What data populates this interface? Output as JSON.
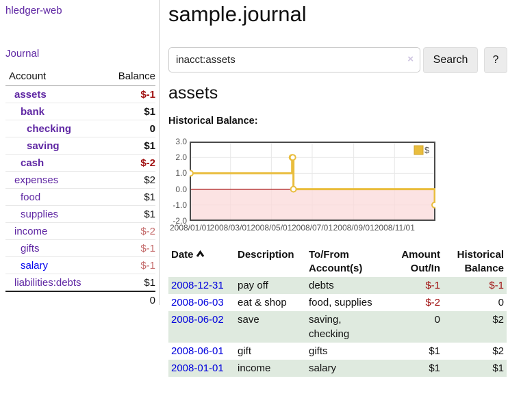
{
  "app": {
    "brand": "hledger-web",
    "nav_journal": "Journal"
  },
  "sidebar": {
    "accounts_table": {
      "col_account": "Account",
      "col_balance": "Balance",
      "rows": [
        {
          "name": "assets",
          "balance": "$-1",
          "depth": 1,
          "bold": true,
          "balance_color": "neg-strong"
        },
        {
          "name": "bank",
          "balance": "$1",
          "depth": 2,
          "bold": true,
          "balance_color": "normal"
        },
        {
          "name": "checking",
          "balance": "0",
          "depth": 3,
          "bold": true,
          "balance_color": "normal"
        },
        {
          "name": "saving",
          "balance": "$1",
          "depth": 3,
          "bold": true,
          "balance_color": "normal"
        },
        {
          "name": "cash",
          "balance": "$-2",
          "depth": 2,
          "bold": true,
          "balance_color": "neg-strong"
        },
        {
          "name": "expenses",
          "balance": "$2",
          "depth": 1,
          "bold": false,
          "balance_color": "normal"
        },
        {
          "name": "food",
          "balance": "$1",
          "depth": 2,
          "bold": false,
          "balance_color": "normal"
        },
        {
          "name": "supplies",
          "balance": "$1",
          "depth": 2,
          "bold": false,
          "balance_color": "normal"
        },
        {
          "name": "income",
          "balance": "$-2",
          "depth": 1,
          "bold": false,
          "balance_color": "neg-soft"
        },
        {
          "name": "gifts",
          "balance": "$-1",
          "depth": 2,
          "bold": false,
          "balance_color": "neg-soft"
        },
        {
          "name": "salary",
          "balance": "$-1",
          "depth": 2,
          "bold": false,
          "balance_color": "neg-soft",
          "link_color": "blue"
        },
        {
          "name": "liabilities:debts",
          "balance": "$1",
          "depth": 1,
          "bold": false,
          "balance_color": "normal"
        }
      ],
      "total": "0"
    }
  },
  "header": {
    "title": "sample.journal"
  },
  "search": {
    "value": "inacct:assets",
    "clear_icon": "×",
    "button": "Search",
    "help_button": "?"
  },
  "account_page": {
    "heading": "assets",
    "chart_label": "Historical Balance:"
  },
  "chart_data": {
    "type": "line",
    "title": "Historical Balance",
    "step": true,
    "series": [
      {
        "name": "$",
        "color": "#e9bd3d",
        "points": [
          [
            "2008-01-01",
            1
          ],
          [
            "2008-06-01",
            2
          ],
          [
            "2008-06-02",
            2
          ],
          [
            "2008-06-03",
            0
          ],
          [
            "2008-12-31",
            -1
          ]
        ]
      }
    ],
    "xlim": [
      "2008-01-01",
      "2008-12-31"
    ],
    "ylim": [
      -2,
      3
    ],
    "x_ticks": [
      "2008/01/01",
      "2008/03/01",
      "2008/05/01",
      "2008/07/01",
      "2008/09/01",
      "2008/11/01"
    ],
    "y_ticks": [
      "3.0",
      "2.0",
      "1.0",
      "0.0",
      "-1.0",
      "-2.0"
    ],
    "grid": true,
    "legend_position": "top-right",
    "negative_region_color": "#fbdada",
    "zero_line_color": "#a00000",
    "border_color": "#4a4a4a"
  },
  "register_table": {
    "headers": {
      "date": "Date",
      "description": "Description",
      "tofrom_1": "To/From",
      "tofrom_2": "Account(s)",
      "amount_1": "Amount",
      "amount_2": "Out/In",
      "hist_1": "Historical",
      "hist_2": "Balance"
    },
    "sort": {
      "column": "date",
      "direction": "ascending"
    },
    "rows": [
      {
        "date": "2008-12-31",
        "description": "pay off",
        "accounts": "debts",
        "amount": "$-1",
        "amount_neg": true,
        "balance": "$-1",
        "balance_neg": true,
        "shaded": true
      },
      {
        "date": "2008-06-03",
        "description": "eat & shop",
        "accounts": "food, supplies",
        "amount": "$-2",
        "amount_neg": true,
        "balance": "0",
        "balance_neg": false,
        "shaded": false
      },
      {
        "date": "2008-06-02",
        "description": "save",
        "accounts": "saving, checking",
        "amount": "0",
        "amount_neg": false,
        "balance": "$2",
        "balance_neg": false,
        "shaded": true
      },
      {
        "date": "2008-06-01",
        "description": "gift",
        "accounts": "gifts",
        "amount": "$1",
        "amount_neg": false,
        "balance": "$2",
        "balance_neg": false,
        "shaded": false
      },
      {
        "date": "2008-01-01",
        "description": "income",
        "accounts": "salary",
        "amount": "$1",
        "amount_neg": false,
        "balance": "$1",
        "balance_neg": false,
        "shaded": true
      }
    ]
  }
}
